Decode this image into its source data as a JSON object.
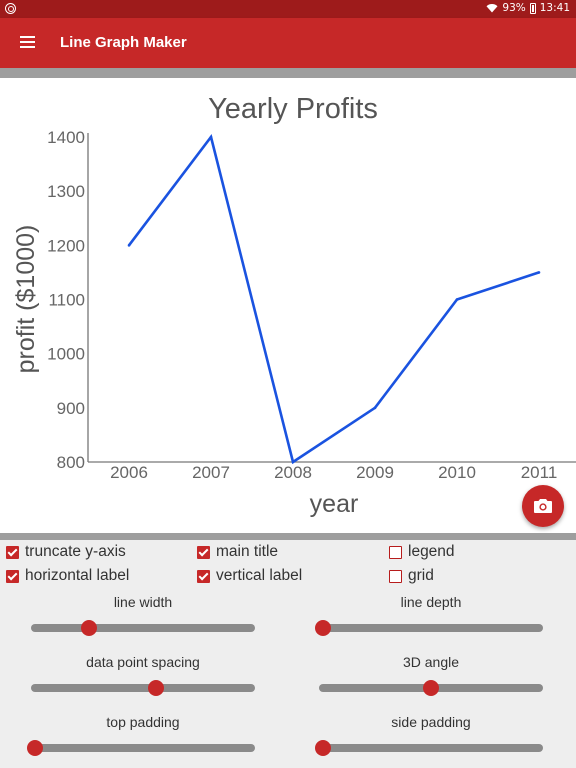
{
  "status_bar": {
    "battery_percent": "93%",
    "time": "13:41"
  },
  "app_bar": {
    "title": "Line Graph Maker"
  },
  "chart_data": {
    "type": "line",
    "title": "Yearly Profits",
    "xlabel": "year",
    "ylabel": "profit ($1000)",
    "categories": [
      "2006",
      "2007",
      "2008",
      "2009",
      "2010",
      "2011"
    ],
    "series": [
      {
        "values": [
          1200,
          1400,
          800,
          900,
          1100,
          1150
        ],
        "color": "#1a53e0"
      }
    ],
    "ylim": [
      800,
      1400
    ],
    "yticks": [
      "800",
      "900",
      "1000",
      "1100",
      "1200",
      "1300",
      "1400"
    ],
    "grid": false,
    "legend": false
  },
  "options": {
    "checkboxes": [
      {
        "label": "truncate y-axis",
        "checked": true
      },
      {
        "label": "main title",
        "checked": true
      },
      {
        "label": "legend",
        "checked": false
      },
      {
        "label": "horizontal label",
        "checked": true
      },
      {
        "label": "vertical label",
        "checked": true
      },
      {
        "label": "grid",
        "checked": false
      }
    ],
    "sliders": [
      {
        "label": "line width",
        "value": 0.26
      },
      {
        "label": "line depth",
        "value": 0.02
      },
      {
        "label": "data point spacing",
        "value": 0.56
      },
      {
        "label": "3D angle",
        "value": 0.5
      },
      {
        "label": "top padding",
        "value": 0.02
      },
      {
        "label": "side padding",
        "value": 0.02
      }
    ]
  }
}
